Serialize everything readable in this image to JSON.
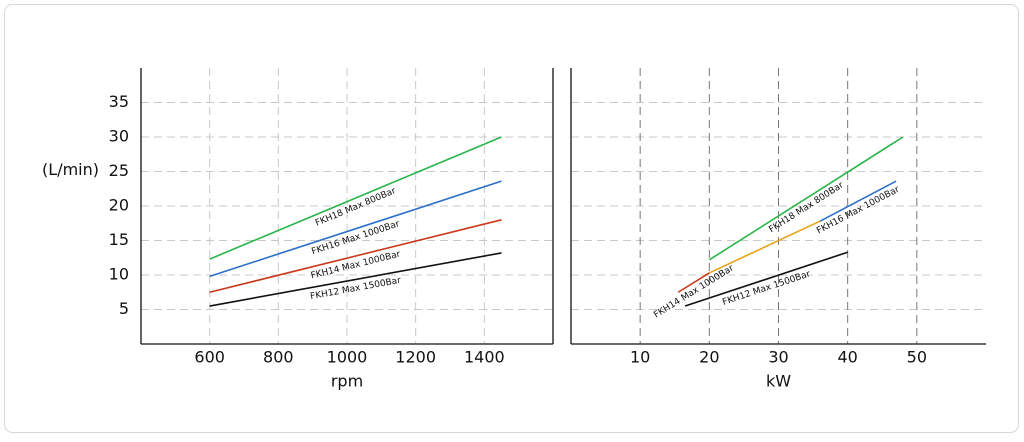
{
  "chart_data": [
    {
      "type": "line",
      "xlabel": "rpm",
      "ylabel": "(L/min)",
      "xlim": [
        400,
        1600
      ],
      "ylim": [
        0,
        40
      ],
      "xticks": [
        600,
        800,
        1000,
        1200,
        1400
      ],
      "yticks": [
        5,
        10,
        15,
        20,
        25,
        30,
        35
      ],
      "ytick_labels": true,
      "grid": true,
      "series": [
        {
          "name": "FKH18 Max 800Bar",
          "color": "#2ab54a",
          "x": [
            600,
            1450
          ],
          "values": [
            12.3,
            30
          ]
        },
        {
          "name": "FKH16 Max 1000Bar",
          "color": "#2a6fc9",
          "x": [
            600,
            1450
          ],
          "values": [
            9.8,
            23.6
          ]
        },
        {
          "name": "FKH14 Max 1000Bar",
          "color": "#c9391c",
          "x": [
            600,
            1450
          ],
          "values": [
            7.5,
            18
          ]
        },
        {
          "name": "FKH12 Max 1500Bar",
          "color": "#111111",
          "x": [
            600,
            1450
          ],
          "values": [
            5.5,
            13.2
          ]
        }
      ]
    },
    {
      "type": "line",
      "xlabel": "kW",
      "xlim": [
        0,
        60
      ],
      "ylim": [
        0,
        40
      ],
      "xticks": [
        10,
        20,
        30,
        40,
        50
      ],
      "yticks": [
        5,
        10,
        15,
        20,
        25,
        30,
        35
      ],
      "ytick_labels": false,
      "grid": true,
      "series": [
        {
          "name": "FKH18 Max 800Bar",
          "color": "#2ab54a",
          "x": [
            20,
            48
          ],
          "values": [
            12.2,
            30
          ]
        },
        {
          "name": "FKH16 Max 1000Bar",
          "color": "#2a6fc9",
          "x": [
            36,
            47
          ],
          "values": [
            17.8,
            23.6
          ]
        },
        {
          "color": "#e8a317",
          "x": [
            20,
            36
          ],
          "values": [
            10.3,
            17.8
          ]
        },
        {
          "name": "FKH14 Max 1000Bar",
          "color": "#c9391c",
          "x": [
            15.5,
            20
          ],
          "values": [
            7.5,
            10.3
          ]
        },
        {
          "name": "FKH12 Max 1500Bar",
          "color": "#111111",
          "x": [
            16.5,
            40
          ],
          "values": [
            5.5,
            13.3
          ]
        }
      ]
    }
  ]
}
